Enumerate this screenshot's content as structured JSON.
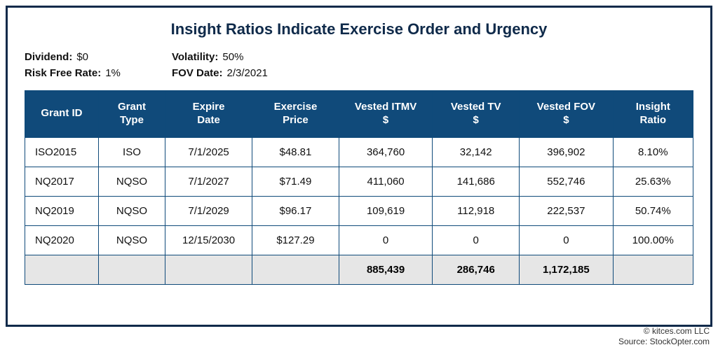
{
  "title": "Insight Ratios Indicate Exercise Order and Urgency",
  "meta": {
    "dividend_label": "Dividend:",
    "dividend_value": "$0",
    "volatility_label": "Volatility:",
    "volatility_value": "50%",
    "rfr_label": "Risk Free Rate:",
    "rfr_value": "1%",
    "fovdate_label": "FOV Date:",
    "fovdate_value": "2/3/2021"
  },
  "table": {
    "columns": [
      "Grant ID",
      "Grant Type",
      "Expire Date",
      "Exercise Price",
      "Vested ITMV $",
      "Vested TV $",
      "Vested FOV $",
      "Insight Ratio"
    ],
    "rows": [
      [
        "ISO2015",
        "ISO",
        "7/1/2025",
        "$48.81",
        "364,760",
        "32,142",
        "396,902",
        "8.10%"
      ],
      [
        "NQ2017",
        "NQSO",
        "7/1/2027",
        "$71.49",
        "411,060",
        "141,686",
        "552,746",
        "25.63%"
      ],
      [
        "NQ2019",
        "NQSO",
        "7/1/2029",
        "$96.17",
        "109,619",
        "112,918",
        "222,537",
        "50.74%"
      ],
      [
        "NQ2020",
        "NQSO",
        "12/15/2030",
        "$127.29",
        "0",
        "0",
        "0",
        "100.00%"
      ]
    ],
    "totals": [
      "",
      "",
      "",
      "",
      "885,439",
      "286,746",
      "1,172,185",
      ""
    ],
    "header_bg": "#104a7a",
    "header_fg": "#ffffff",
    "border_color": "#0f4a7a",
    "total_bg": "#e6e6e6"
  },
  "attribution": {
    "copyright": "© kitces.com LLC",
    "source": "Source: StockOpter.com"
  }
}
